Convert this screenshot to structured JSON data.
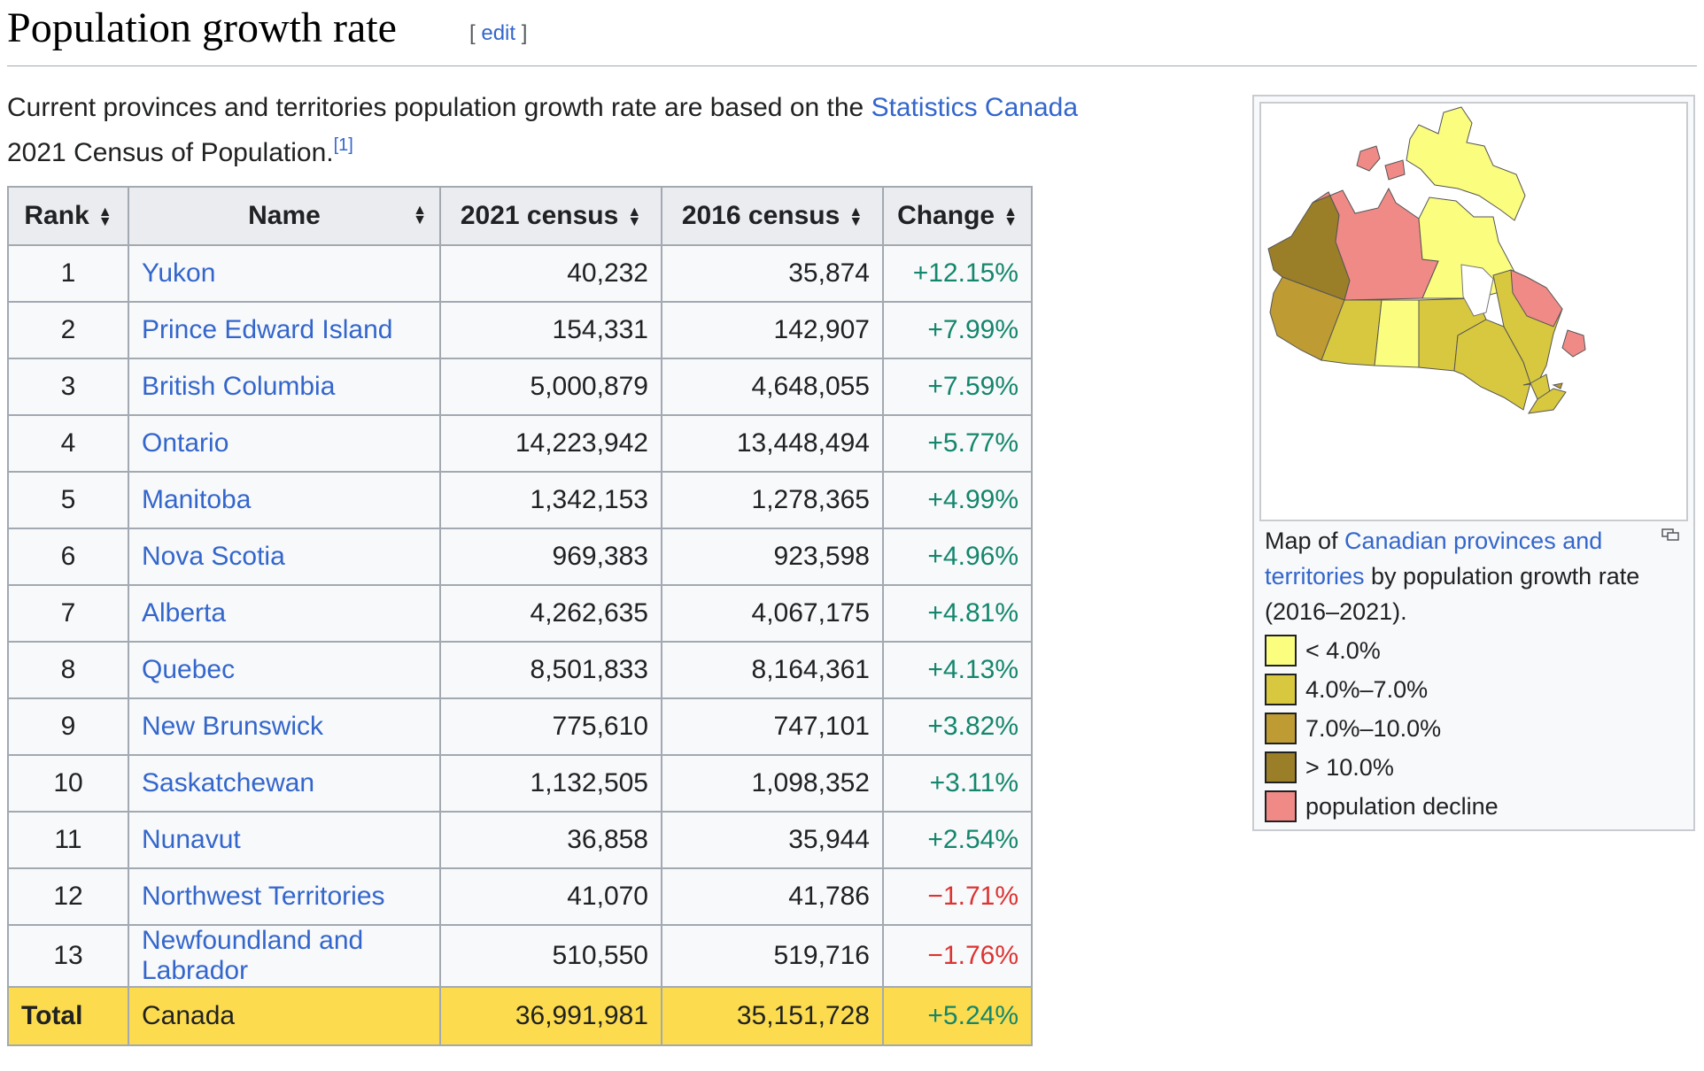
{
  "heading": {
    "title": "Population growth rate",
    "edit_open": "[ ",
    "edit_label": "edit",
    "edit_close": " ]"
  },
  "intro": {
    "text_before": "Current provinces and territories population growth rate are based on the ",
    "link": "Statistics Canada",
    "text_after": " 2021 Census of Population.",
    "ref": "[1]"
  },
  "table": {
    "headers": [
      "Rank",
      "Name",
      "2021 census",
      "2016 census",
      "Change"
    ],
    "sort_glyph_up": "▲",
    "sort_glyph_down": "▼",
    "rows": [
      {
        "rank": "1",
        "name": "Yukon",
        "c2021": "40,232",
        "c2016": "35,874",
        "change": "+12.15%"
      },
      {
        "rank": "2",
        "name": "Prince Edward Island",
        "c2021": "154,331",
        "c2016": "142,907",
        "change": "+7.99%"
      },
      {
        "rank": "3",
        "name": "British Columbia",
        "c2021": "5,000,879",
        "c2016": "4,648,055",
        "change": "+7.59%"
      },
      {
        "rank": "4",
        "name": "Ontario",
        "c2021": "14,223,942",
        "c2016": "13,448,494",
        "change": "+5.77%"
      },
      {
        "rank": "5",
        "name": "Manitoba",
        "c2021": "1,342,153",
        "c2016": "1,278,365",
        "change": "+4.99%"
      },
      {
        "rank": "6",
        "name": "Nova Scotia",
        "c2021": "969,383",
        "c2016": "923,598",
        "change": "+4.96%"
      },
      {
        "rank": "7",
        "name": "Alberta",
        "c2021": "4,262,635",
        "c2016": "4,067,175",
        "change": "+4.81%"
      },
      {
        "rank": "8",
        "name": "Quebec",
        "c2021": "8,501,833",
        "c2016": "8,164,361",
        "change": "+4.13%"
      },
      {
        "rank": "9",
        "name": "New Brunswick",
        "c2021": "775,610",
        "c2016": "747,101",
        "change": "+3.82%"
      },
      {
        "rank": "10",
        "name": "Saskatchewan",
        "c2021": "1,132,505",
        "c2016": "1,098,352",
        "change": "+3.11%"
      },
      {
        "rank": "11",
        "name": "Nunavut",
        "c2021": "36,858",
        "c2016": "35,944",
        "change": "+2.54%"
      },
      {
        "rank": "12",
        "name": "Northwest Territories",
        "c2021": "41,070",
        "c2016": "41,786",
        "change": "−1.71%"
      },
      {
        "rank": "13",
        "name": "Newfoundland and Labrador",
        "c2021": "510,550",
        "c2016": "519,716",
        "change": "−1.76%"
      }
    ],
    "total": {
      "label": "Total",
      "name": "Canada",
      "c2021": "36,991,981",
      "c2016": "35,151,728",
      "change": "+5.24%"
    }
  },
  "map": {
    "caption_before": "Map of ",
    "caption_link": "Canadian provinces and territories",
    "caption_after": " by population growth rate (2016–2021).",
    "legend": [
      {
        "label": "< 4.0%",
        "color": "#fbfd7f"
      },
      {
        "label": "4.0%–7.0%",
        "color": "#d8c840"
      },
      {
        "label": "7.0%–10.0%",
        "color": "#bf9b33"
      },
      {
        "label": "> 10.0%",
        "color": "#9a7f28"
      },
      {
        "label": "population decline",
        "color": "#f08a86"
      }
    ]
  },
  "colors": {
    "link": "#3366cc",
    "positive": "#14866d",
    "negative": "#d33333",
    "total_row": "#fcdc4e",
    "header_bg": "#eaecf0"
  }
}
